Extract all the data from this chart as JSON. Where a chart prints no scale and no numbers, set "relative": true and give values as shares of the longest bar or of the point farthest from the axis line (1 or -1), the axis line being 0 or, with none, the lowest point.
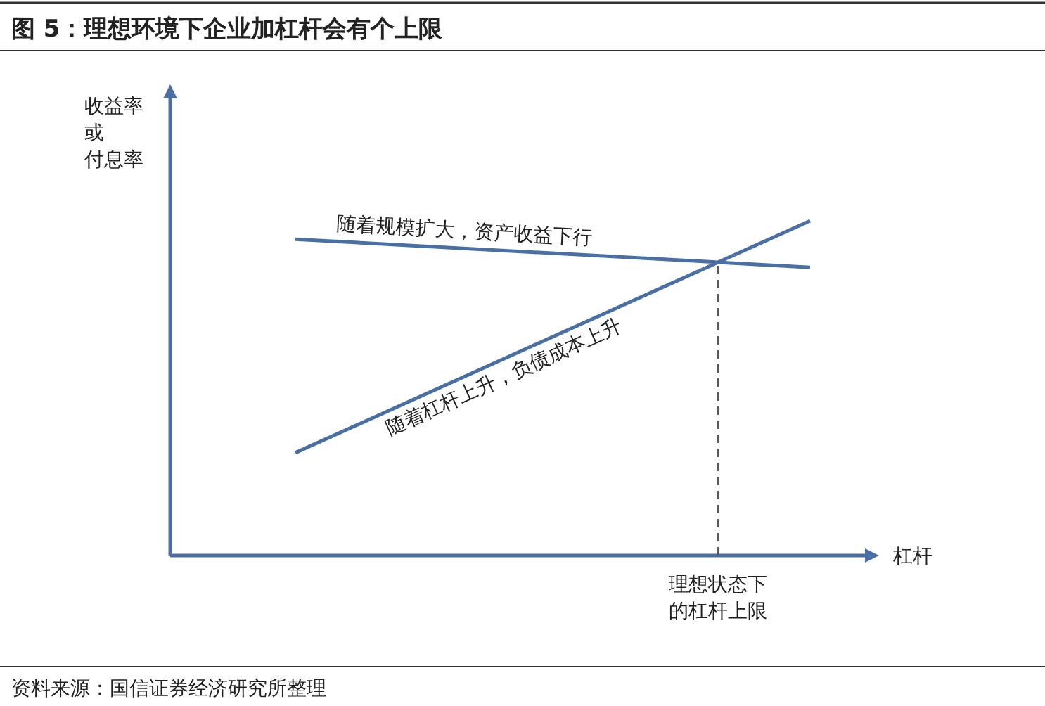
{
  "chart_data": {
    "type": "line",
    "title": "图 5：理想环境下企业加杠杆会有个上限",
    "xlabel": "杠杆",
    "ylabel": "收益率或付息率",
    "relative": true,
    "marker": "none",
    "line_style": "solid",
    "categories": [
      null,
      null
    ],
    "series": [
      {
        "color": "#4a6fa5",
        "values": [
          0.945,
          0.861
        ]
      },
      {
        "color": "#4a6fa5",
        "values": [
          0.307,
          1
        ]
      }
    ],
    "annotations": [
      "随着规模扩大，资产收益下行",
      "随着杠杆上升，负债成本上升",
      "理想状态下的杠杆上限",
      "资料来源：国信证券经济研究所整理"
    ]
  }
}
